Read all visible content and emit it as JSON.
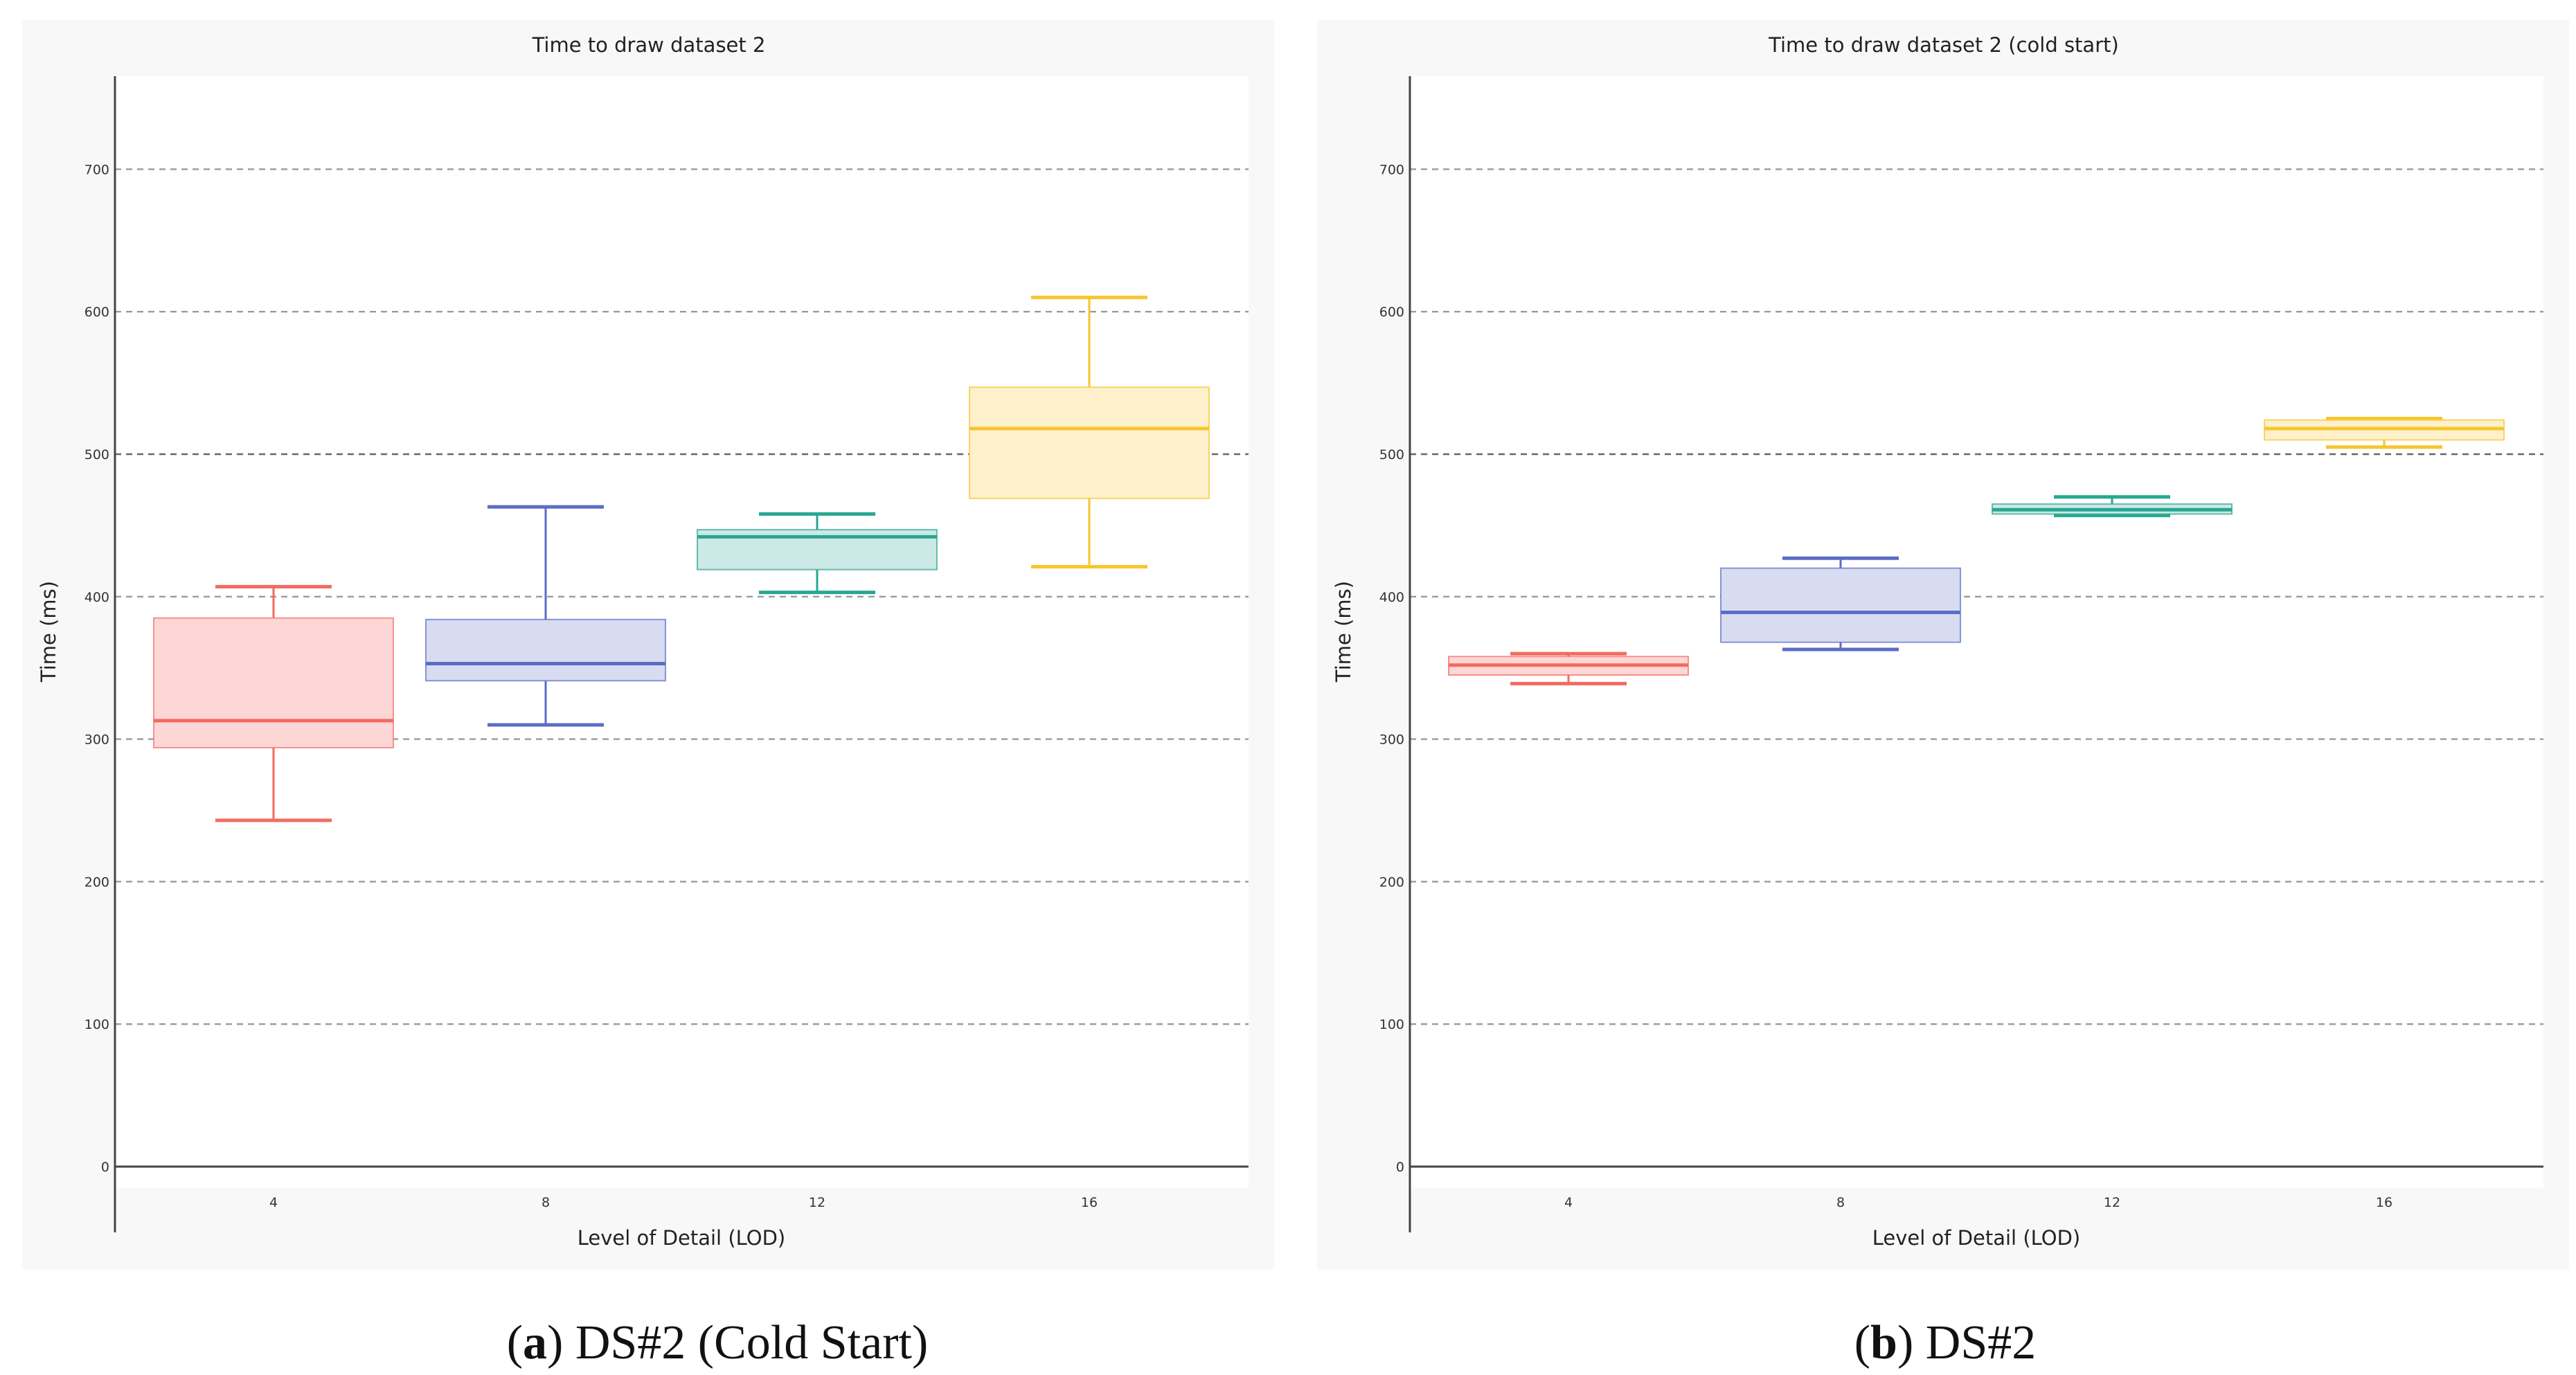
{
  "chart_data": [
    {
      "type": "box",
      "title": "Time to draw dataset 2",
      "xlabel": "Level of Detail (LOD)",
      "ylabel": "Time (ms)",
      "ylim": [
        -15,
        765
      ],
      "yticks": [
        0,
        100,
        200,
        300,
        400,
        500,
        600,
        700
      ],
      "grid": true,
      "categories": [
        "4",
        "8",
        "12",
        "16"
      ],
      "series": [
        {
          "category": "4",
          "whisker_low": 243,
          "q1": 294,
          "median": 313,
          "q3": 385,
          "whisker_high": 407,
          "color": "#f26b5f",
          "fill": "#fdd7d6"
        },
        {
          "category": "8",
          "whisker_low": 310,
          "q1": 341,
          "median": 353,
          "q3": 384,
          "whisker_high": 463,
          "color": "#5b6cc6",
          "fill": "#d7dcf1"
        },
        {
          "category": "12",
          "whisker_low": 403,
          "q1": 419,
          "median": 442,
          "q3": 447,
          "whisker_high": 458,
          "color": "#27a792",
          "fill": "#cde9e6"
        },
        {
          "category": "16",
          "whisker_low": 421,
          "q1": 469,
          "median": 518,
          "q3": 547,
          "whisker_high": 610,
          "color": "#f7c62d",
          "fill": "#fdf0cb"
        }
      ],
      "caption": {
        "letter": "a",
        "text": "DS#2 (Cold Start)"
      }
    },
    {
      "type": "box",
      "title": "Time to draw dataset 2 (cold start)",
      "xlabel": "Level of Detail (LOD)",
      "ylabel": "Time (ms)",
      "ylim": [
        -15,
        765
      ],
      "yticks": [
        0,
        100,
        200,
        300,
        400,
        500,
        600,
        700
      ],
      "grid": true,
      "categories": [
        "4",
        "8",
        "12",
        "16"
      ],
      "series": [
        {
          "category": "4",
          "whisker_low": 339,
          "q1": 345,
          "median": 352,
          "q3": 358,
          "whisker_high": 360,
          "color": "#f26b5f",
          "fill": "#fdd7d6"
        },
        {
          "category": "8",
          "whisker_low": 363,
          "q1": 368,
          "median": 389,
          "q3": 420,
          "whisker_high": 427,
          "color": "#5b6cc6",
          "fill": "#d7dcf1"
        },
        {
          "category": "12",
          "whisker_low": 457,
          "q1": 458,
          "median": 461,
          "q3": 465,
          "whisker_high": 470,
          "color": "#27a792",
          "fill": "#cde9e6"
        },
        {
          "category": "16",
          "whisker_low": 505,
          "q1": 510,
          "median": 518,
          "q3": 524,
          "whisker_high": 525,
          "color": "#f7c62d",
          "fill": "#fdf0cb"
        }
      ],
      "caption": {
        "letter": "b",
        "text": "DS#2"
      }
    }
  ]
}
